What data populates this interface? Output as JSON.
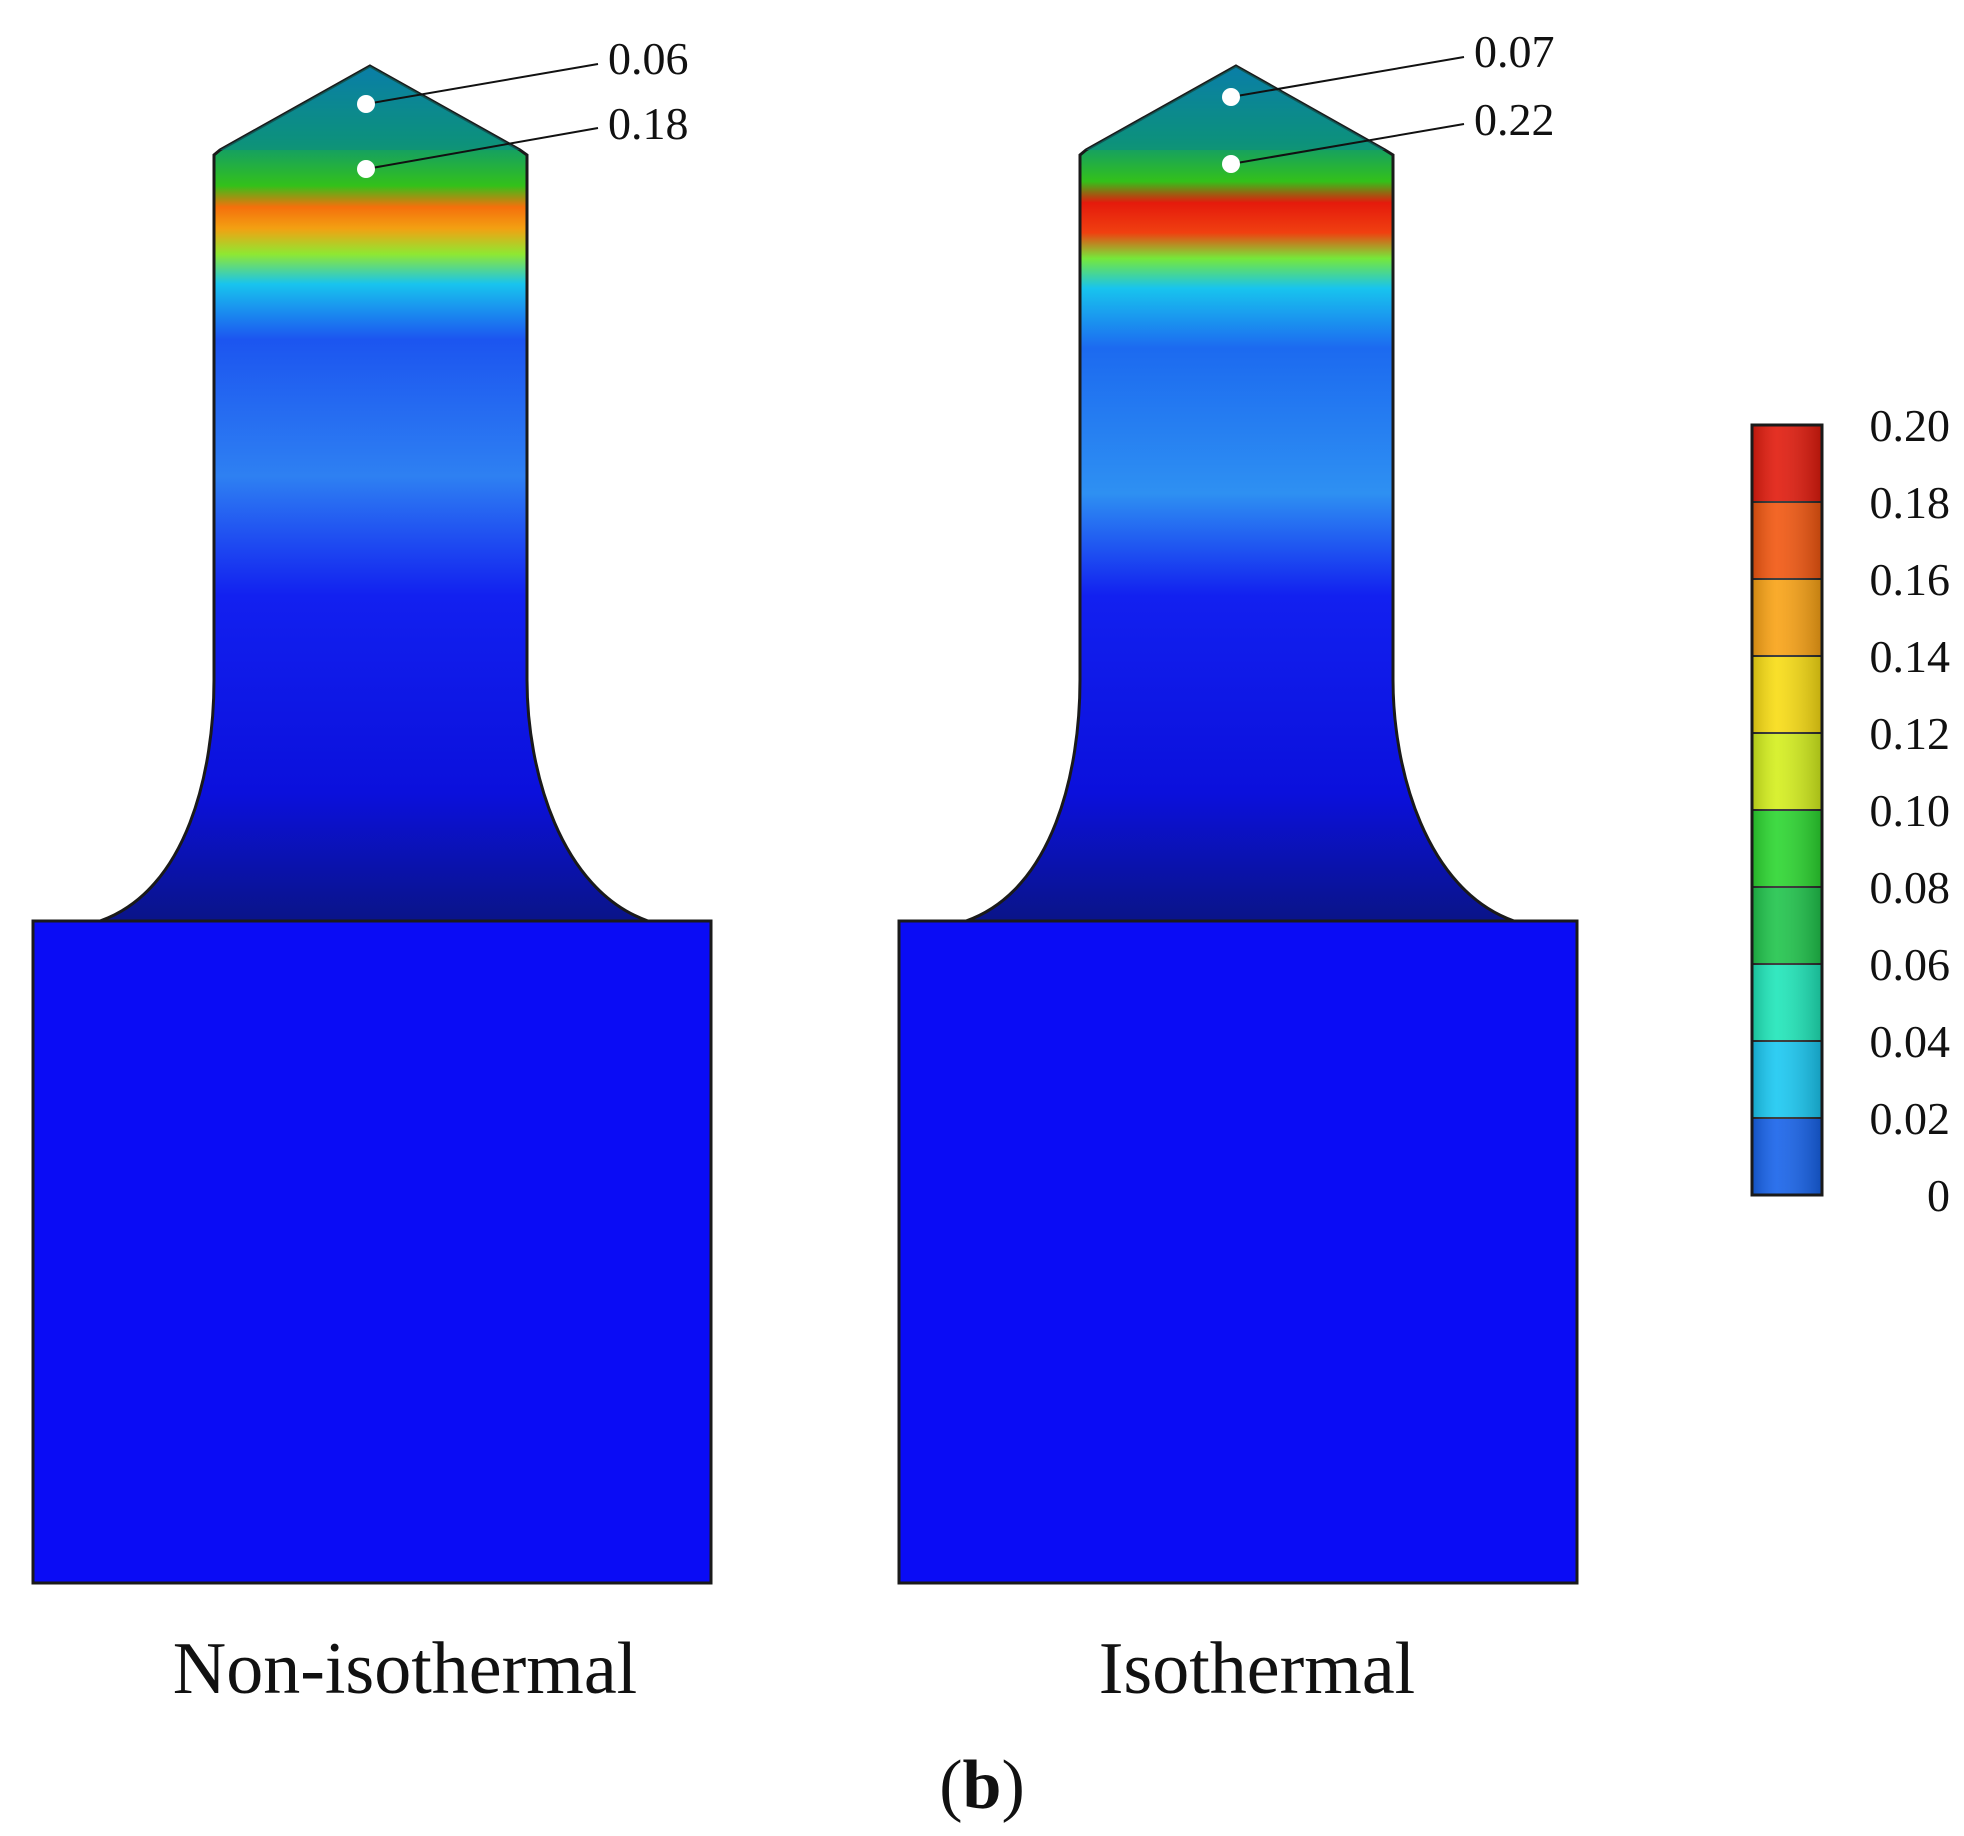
{
  "figure": {
    "panel_label_open": "(",
    "panel_label_letter": "b",
    "panel_label_close": ")"
  },
  "specimens": [
    {
      "caption": "Non-isothermal",
      "callouts": [
        {
          "label": "0.06",
          "location": "tip apex"
        },
        {
          "label": "0.18",
          "location": "tip base"
        }
      ]
    },
    {
      "caption": "Isothermal",
      "callouts": [
        {
          "label": "0.07",
          "location": "tip apex"
        },
        {
          "label": "0.22",
          "location": "tip base"
        }
      ]
    }
  ],
  "colorbar": {
    "ticks": [
      "0.20",
      "0.18",
      "0.16",
      "0.14",
      "0.12",
      "0.10",
      "0.08",
      "0.06",
      "0.04",
      "0.02",
      "0"
    ],
    "colors": [
      "#e11a0c",
      "#f2560f",
      "#f9a214",
      "#f8dc12",
      "#d4ef1c",
      "#2bd62f",
      "#1fc44b",
      "#1ee6b9",
      "#19c8f2",
      "#1662ea"
    ]
  },
  "colors": {
    "base_blue": "#0a0cf5",
    "outline": "#1a1a1a"
  }
}
